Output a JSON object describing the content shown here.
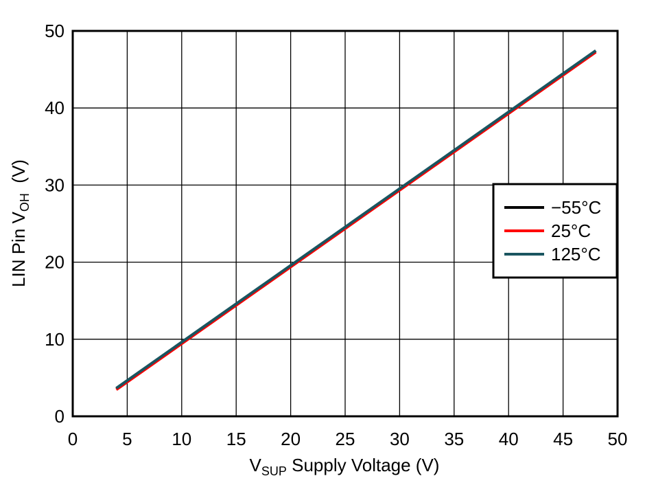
{
  "chart_data": {
    "type": "line",
    "title": "",
    "xlabel": {
      "main": "V",
      "sub": "SUP",
      "rest": " Supply Voltage (V)"
    },
    "ylabel": {
      "main": "LIN Pin V",
      "sub": "OH",
      "rest": "  (V)"
    },
    "xlim": [
      0,
      50
    ],
    "ylim": [
      0,
      50
    ],
    "xticks": [
      0,
      5,
      10,
      15,
      20,
      25,
      30,
      35,
      40,
      45,
      50
    ],
    "yticks": [
      0,
      10,
      20,
      30,
      40,
      50
    ],
    "grid": true,
    "legend_placement": "right",
    "series": [
      {
        "name": "−55°C",
        "color": "#000000",
        "points": [
          [
            4,
            3.6
          ],
          [
            48,
            47.4
          ]
        ]
      },
      {
        "name": "25°C",
        "color": "#ff0000",
        "points": [
          [
            4,
            3.45
          ],
          [
            48,
            47.25
          ]
        ]
      },
      {
        "name": "125°C",
        "color": "#1a5560",
        "points": [
          [
            4,
            3.65
          ],
          [
            48,
            47.45
          ]
        ]
      }
    ]
  }
}
